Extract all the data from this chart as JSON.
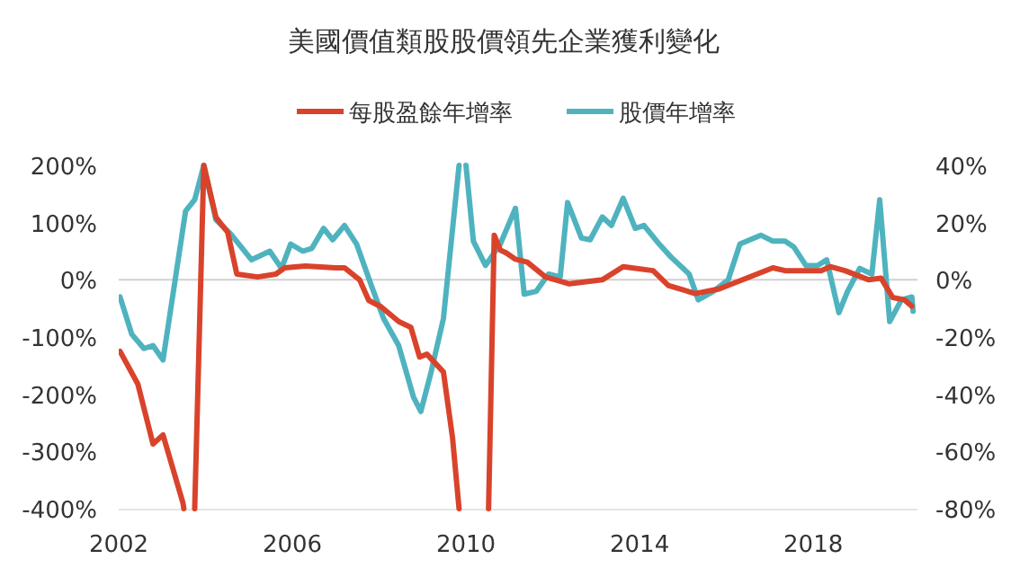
{
  "chart_data": {
    "type": "line",
    "title": "美國價值類股股價領先企業獲利變化",
    "legend": "top",
    "line_style": "solid",
    "marker": "none",
    "xlim": [
      2002,
      2020.4
    ],
    "xticks": [
      2002,
      2006,
      2010,
      2014,
      2018
    ],
    "ylim": [
      -400,
      200
    ],
    "yticks": [
      {
        "value": 200,
        "label": "200%"
      },
      {
        "value": 100,
        "label": "100%"
      },
      {
        "value": 0,
        "label": "0%"
      },
      {
        "value": -100,
        "label": "-100%"
      },
      {
        "value": -200,
        "label": "-200%"
      },
      {
        "value": -300,
        "label": "-300%"
      },
      {
        "value": -400,
        "label": "-400%"
      }
    ],
    "y2lim": [
      -80,
      40
    ],
    "y2ticks": [
      {
        "value": 40,
        "label": "40%"
      },
      {
        "value": 20,
        "label": "20%"
      },
      {
        "value": 0,
        "label": "0%"
      },
      {
        "value": -20,
        "label": "-20%"
      },
      {
        "value": -40,
        "label": "-40%"
      },
      {
        "value": -60,
        "label": "-60%"
      },
      {
        "value": -80,
        "label": "-80%"
      }
    ],
    "ref_lines": [
      {
        "axis": "y",
        "value": 0,
        "color": "#d0d0d0"
      }
    ],
    "series": [
      {
        "name": "每股盈餘年增率",
        "color": "#d9432b",
        "x": [
          2002.03,
          2002.44,
          2002.79,
          2003.02,
          2003.48,
          2003.5,
          null,
          2003.75,
          2003.96,
          2004.24,
          2004.51,
          2004.72,
          2005.2,
          2005.62,
          2005.82,
          2006.3,
          2006.99,
          2007.2,
          2007.55,
          2007.76,
          2008.04,
          2008.45,
          2008.73,
          2008.93,
          2009.1,
          2009.48,
          2009.69,
          2009.84,
          null,
          2010.52,
          2010.65,
          2010.79,
          2010.93,
          2011.14,
          2011.41,
          2011.83,
          2012.38,
          2013.14,
          2013.62,
          2014.31,
          2014.66,
          2015.28,
          2015.83,
          2017.07,
          2017.35,
          2018.18,
          2018.39,
          2018.73,
          2019.28,
          2019.56,
          2019.83,
          2020.1,
          2020.27
        ],
        "values": [
          -125,
          -182,
          -287,
          -271,
          -390,
          -400,
          null,
          -400,
          200,
          109,
          83,
          10,
          5,
          10,
          21,
          24,
          21,
          21,
          0,
          -36,
          -47,
          -73,
          -83,
          -135,
          -130,
          -161,
          -276,
          -400,
          null,
          -400,
          78,
          52,
          47,
          36,
          31,
          5,
          -7,
          0,
          23,
          16,
          -10,
          -24,
          -16,
          21,
          16,
          16,
          23,
          16,
          0,
          3,
          -31,
          -35,
          -46
        ]
      },
      {
        "name": "股價年增率",
        "color": "#4fb3bf",
        "axis": "y2",
        "x": [
          2002.03,
          2002.3,
          2002.58,
          2002.79,
          2003.02,
          2003.27,
          2003.54,
          2003.75,
          2003.96,
          2004.24,
          2004.58,
          2005.06,
          2005.48,
          2005.75,
          2005.96,
          2006.24,
          2006.45,
          2006.72,
          2006.93,
          2007.2,
          2007.48,
          2007.82,
          2008.1,
          2008.45,
          2008.79,
          2008.96,
          2009.2,
          2009.48,
          2009.84,
          null,
          2010.0,
          2010.17,
          2010.45,
          2010.79,
          2011.14,
          2011.34,
          2011.62,
          2011.9,
          2012.17,
          2012.34,
          2012.66,
          2012.86,
          2013.14,
          2013.35,
          2013.62,
          2013.9,
          2014.1,
          2014.45,
          2014.72,
          2015.14,
          2015.35,
          2015.7,
          2016.04,
          2016.31,
          2016.79,
          2017.07,
          2017.35,
          2017.55,
          2017.83,
          2018.1,
          2018.31,
          2018.59,
          2018.79,
          2019.07,
          2019.35,
          2019.53,
          2019.76,
          2020.03,
          2020.27,
          2020.3
        ],
        "values": [
          -6,
          -19,
          -24,
          -23,
          -28,
          -3,
          24,
          28,
          40,
          21,
          16,
          7,
          10,
          4,
          12.5,
          10,
          11,
          18,
          14,
          19,
          12.5,
          -2,
          -13.5,
          -23,
          -41,
          -46,
          -32,
          -13.5,
          40,
          null,
          40,
          13.5,
          5,
          12.5,
          25,
          -5,
          -4,
          2,
          1,
          27,
          14.6,
          14,
          22,
          19,
          28.5,
          18,
          19,
          12.5,
          8,
          2,
          -7,
          -4,
          0,
          12.5,
          15.6,
          13.5,
          13.5,
          11.5,
          5,
          5,
          7,
          -11.5,
          -4,
          4,
          2,
          28,
          -14.6,
          -7,
          -6,
          -11
        ]
      }
    ]
  }
}
